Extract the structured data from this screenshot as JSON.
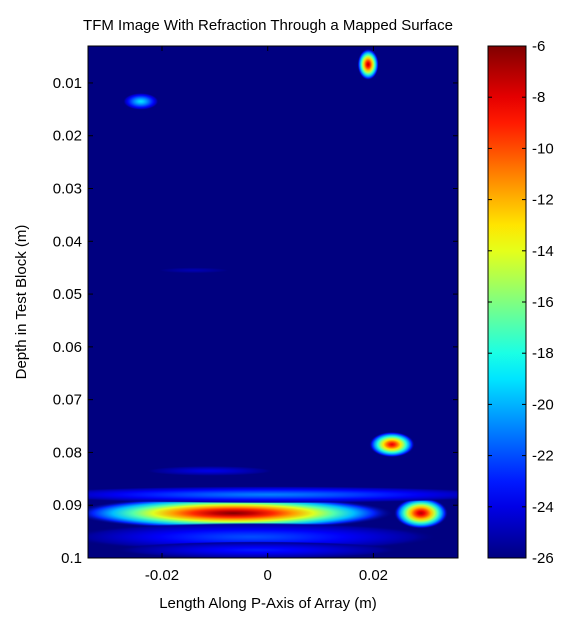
{
  "chart_data": {
    "type": "heatmap",
    "title": "TFM Image With Refraction Through a Mapped Surface",
    "xlabel": "Length Along P-Axis of Array (m)",
    "ylabel": "Depth in Test Block (m)",
    "xlim": [
      -0.034,
      0.036
    ],
    "ylim": [
      0.1,
      0.003
    ],
    "x_ticks": [
      {
        "value": -0.02,
        "label": "-0.02"
      },
      {
        "value": 0,
        "label": "0"
      },
      {
        "value": 0.02,
        "label": "0.02"
      }
    ],
    "y_ticks": [
      {
        "value": 0.01,
        "label": "0.01"
      },
      {
        "value": 0.02,
        "label": "0.02"
      },
      {
        "value": 0.03,
        "label": "0.03"
      },
      {
        "value": 0.04,
        "label": "0.04"
      },
      {
        "value": 0.05,
        "label": "0.05"
      },
      {
        "value": 0.06,
        "label": "0.06"
      },
      {
        "value": 0.07,
        "label": "0.07"
      },
      {
        "value": 0.08,
        "label": "0.08"
      },
      {
        "value": 0.09,
        "label": "0.09"
      },
      {
        "value": 0.1,
        "label": "0.1"
      }
    ],
    "colorbar": {
      "colormap": "jet",
      "range": [
        -26,
        -6
      ],
      "ticks": [
        {
          "value": -6,
          "label": "-6"
        },
        {
          "value": -8,
          "label": "-8"
        },
        {
          "value": -10,
          "label": "-10"
        },
        {
          "value": -12,
          "label": "-12"
        },
        {
          "value": -14,
          "label": "-14"
        },
        {
          "value": -16,
          "label": "-16"
        },
        {
          "value": -18,
          "label": "-18"
        },
        {
          "value": -20,
          "label": "-20"
        },
        {
          "value": -22,
          "label": "-22"
        },
        {
          "value": -24,
          "label": "-24"
        },
        {
          "value": -26,
          "label": "-26"
        }
      ]
    },
    "background_value": -26,
    "features": [
      {
        "name": "reflector-top-right",
        "x": 0.019,
        "y": 0.0065,
        "rx": 0.0015,
        "ry": 0.0022,
        "peak": -7
      },
      {
        "name": "reflector-top-left",
        "x": -0.024,
        "y": 0.0135,
        "rx": 0.0025,
        "ry": 0.0012,
        "peak": -19
      },
      {
        "name": "reflector-mid-right",
        "x": 0.0235,
        "y": 0.0785,
        "rx": 0.0032,
        "ry": 0.0018,
        "peak": -8
      },
      {
        "name": "backwall-main",
        "x": -0.0065,
        "y": 0.0915,
        "rx": 0.0225,
        "ry": 0.0023,
        "peak": -6
      },
      {
        "name": "backwall-right",
        "x": 0.029,
        "y": 0.0915,
        "rx": 0.0038,
        "ry": 0.0022,
        "peak": -7
      },
      {
        "name": "backwall-halo-upper",
        "x": 0.0,
        "y": 0.088,
        "rx": 0.034,
        "ry": 0.0012,
        "peak": -21
      },
      {
        "name": "backwall-halo-lower",
        "x": -0.003,
        "y": 0.096,
        "rx": 0.026,
        "ry": 0.002,
        "peak": -22
      },
      {
        "name": "faint-band-lower",
        "x": -0.002,
        "y": 0.0985,
        "rx": 0.02,
        "ry": 0.0012,
        "peak": -23
      },
      {
        "name": "faint-streak-1",
        "x": -0.014,
        "y": 0.0455,
        "rx": 0.005,
        "ry": 0.0004,
        "peak": -25
      },
      {
        "name": "faint-streak-2",
        "x": -0.011,
        "y": 0.0835,
        "rx": 0.009,
        "ry": 0.0007,
        "peak": -24
      }
    ]
  }
}
